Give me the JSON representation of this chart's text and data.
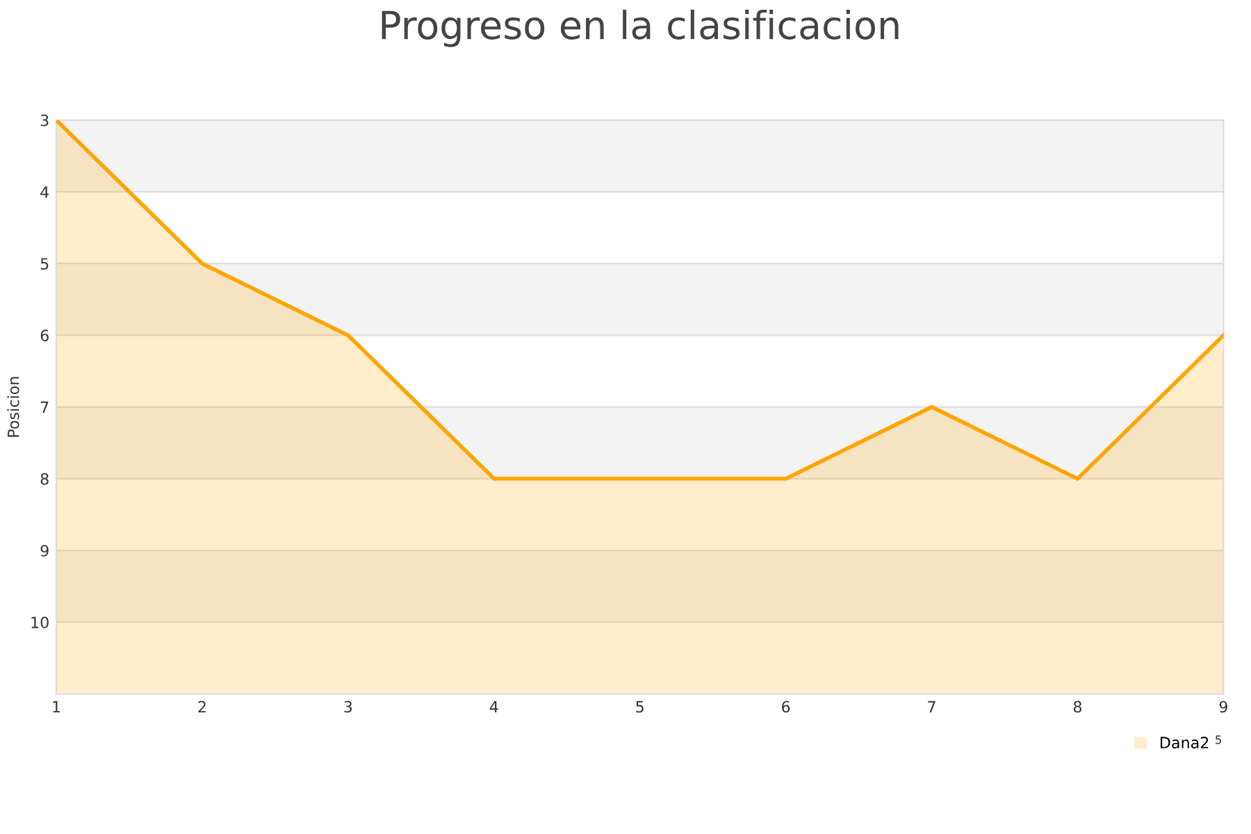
{
  "chart_data": {
    "type": "area",
    "title": "Progreso en la clasificacion",
    "ylabel": "Posicion",
    "x": [
      1,
      2,
      3,
      4,
      5,
      6,
      7,
      8,
      9
    ],
    "series": [
      {
        "name": "Dana2",
        "color": "#ffa500",
        "values": [
          3,
          5,
          6,
          8,
          8,
          8,
          7,
          8,
          6
        ]
      }
    ],
    "xlim": [
      1,
      9
    ],
    "xticks": [
      1,
      2,
      3,
      4,
      5,
      6,
      7,
      8,
      9
    ],
    "ylim": [
      11,
      3
    ],
    "yticks": [
      3,
      4,
      5,
      6,
      7,
      8,
      9,
      10,
      {
        "value": 11,
        "label": null
      }
    ],
    "grid": "y",
    "legend": "bottom right",
    "marker": "none",
    "line_style": "solid",
    "annotations": [
      "5"
    ]
  }
}
